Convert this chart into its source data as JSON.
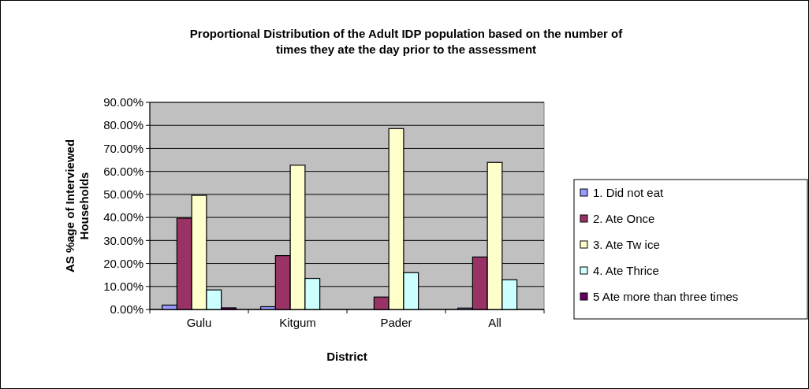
{
  "chart_data": {
    "type": "bar",
    "title": "Proportional Distribution of the Adult IDP population based on the number of times they ate the day prior to the assessment",
    "xlabel": "District",
    "ylabel": "AS %age of Interviewed Households",
    "categories": [
      "Gulu",
      "Kitgum",
      "Pader",
      "All"
    ],
    "series": [
      {
        "name": "1. Did not eat",
        "color": "#9999ff",
        "values": [
          1.9,
          1.2,
          0,
          0.6
        ]
      },
      {
        "name": "2. Ate Once",
        "color": "#993366",
        "values": [
          39.7,
          23.4,
          5.4,
          22.8
        ]
      },
      {
        "name": "3. Ate Tw ice",
        "color": "#ffffcc",
        "values": [
          49.6,
          62.7,
          78.6,
          63.9
        ]
      },
      {
        "name": "4. Ate Thrice",
        "color": "#ccffff",
        "values": [
          8.5,
          13.5,
          16.0,
          12.9
        ]
      },
      {
        "name": "5 Ate more than three times",
        "color": "#660066",
        "values": [
          0.7,
          0,
          0,
          0
        ]
      }
    ],
    "ylim": [
      0,
      90
    ],
    "yticks": [
      {
        "value": 0,
        "label": "0.00%"
      },
      {
        "value": 10,
        "label": "10.00%"
      },
      {
        "value": 20,
        "label": "20.00%"
      },
      {
        "value": 30,
        "label": "30.00%"
      },
      {
        "value": 40,
        "label": "40.00%"
      },
      {
        "value": 50,
        "label": "50.00%"
      },
      {
        "value": 60,
        "label": "60.00%"
      },
      {
        "value": 70,
        "label": "70.00%"
      },
      {
        "value": 80,
        "label": "80.00%"
      },
      {
        "value": 90,
        "label": "90.00%"
      }
    ],
    "grid": "y",
    "legend": "right"
  }
}
